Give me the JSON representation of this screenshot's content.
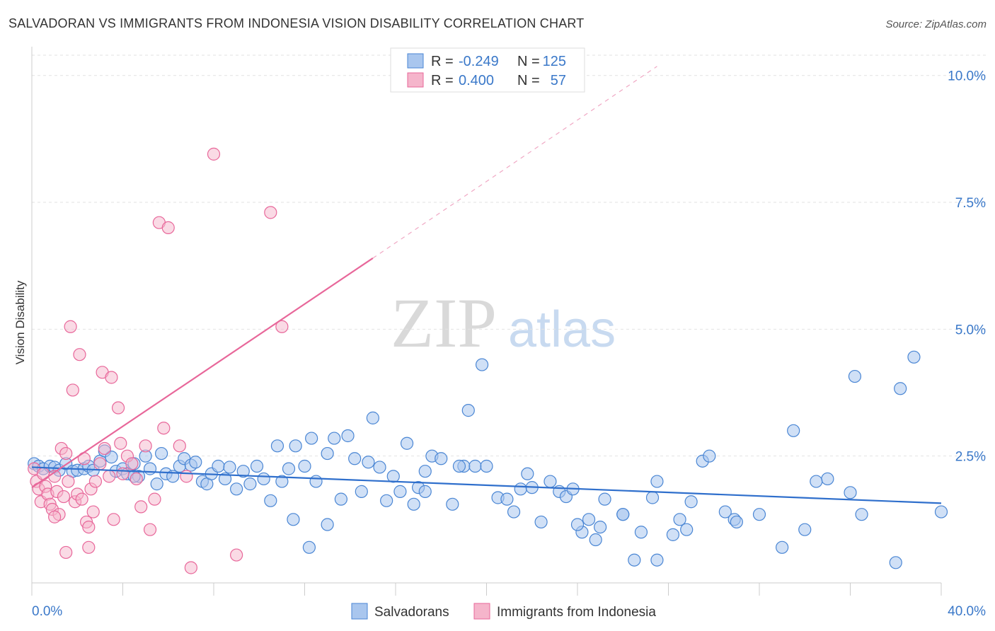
{
  "chart_data": {
    "type": "scatter",
    "title": "SALVADORAN VS IMMIGRANTS FROM INDONESIA VISION DISABILITY CORRELATION CHART",
    "source": "Source: ZipAtlas.com",
    "xlabel": "",
    "ylabel": "Vision Disability",
    "xlim": [
      0,
      40
    ],
    "ylim": [
      0,
      10.4
    ],
    "x_tick_labels": [
      "0.0%",
      "40.0%"
    ],
    "y_ticks": [
      2.5,
      5.0,
      7.5,
      10.0
    ],
    "y_tick_labels": [
      "2.5%",
      "5.0%",
      "7.5%",
      "10.0%"
    ],
    "grid": true,
    "watermark": {
      "zip": "ZIP",
      "atlas": "atlas"
    },
    "colors": {
      "blue": "#4a86d4",
      "blue_fill": "#a9c6ee",
      "pink": "#e8679a",
      "pink_fill": "#f5b5cb",
      "tick": "#3a78c9"
    },
    "legend": {
      "rows": [
        {
          "r_label": "R =",
          "r_value": "-0.249",
          "n_label": "N =",
          "n_value": "125"
        },
        {
          "r_label": "R =",
          "r_value": "0.400",
          "n_label": "N =",
          "n_value": "57"
        }
      ]
    },
    "series": [
      {
        "name": "Salvadorans",
        "color": "#4a86d4",
        "trend": {
          "x0": 0,
          "y0": 2.28,
          "x1": 40,
          "y1": 1.57
        },
        "points": [
          [
            0.1,
            2.35
          ],
          [
            0.3,
            2.3
          ],
          [
            0.5,
            2.25
          ],
          [
            0.8,
            2.3
          ],
          [
            1.0,
            2.28
          ],
          [
            1.2,
            2.22
          ],
          [
            1.5,
            2.35
          ],
          [
            1.8,
            2.2
          ],
          [
            2.0,
            2.22
          ],
          [
            2.3,
            2.25
          ],
          [
            2.5,
            2.3
          ],
          [
            2.7,
            2.22
          ],
          [
            3.0,
            2.4
          ],
          [
            3.2,
            2.6
          ],
          [
            3.5,
            2.48
          ],
          [
            3.7,
            2.2
          ],
          [
            4.0,
            2.25
          ],
          [
            4.2,
            2.15
          ],
          [
            4.5,
            2.35
          ],
          [
            4.7,
            2.1
          ],
          [
            4.5,
            2.1
          ],
          [
            5.0,
            2.5
          ],
          [
            5.2,
            2.25
          ],
          [
            5.5,
            1.95
          ],
          [
            5.7,
            2.55
          ],
          [
            5.9,
            2.15
          ],
          [
            6.2,
            2.1
          ],
          [
            6.5,
            2.3
          ],
          [
            6.7,
            2.45
          ],
          [
            7.0,
            2.32
          ],
          [
            7.2,
            2.38
          ],
          [
            7.5,
            2.0
          ],
          [
            7.7,
            1.95
          ],
          [
            7.9,
            2.15
          ],
          [
            8.2,
            2.3
          ],
          [
            8.5,
            2.05
          ],
          [
            8.7,
            2.28
          ],
          [
            9.0,
            1.85
          ],
          [
            9.3,
            2.2
          ],
          [
            9.6,
            1.95
          ],
          [
            9.9,
            2.3
          ],
          [
            10.2,
            2.05
          ],
          [
            10.5,
            1.62
          ],
          [
            10.8,
            2.7
          ],
          [
            11.0,
            2.0
          ],
          [
            11.3,
            2.25
          ],
          [
            11.6,
            2.7
          ],
          [
            12.0,
            2.3
          ],
          [
            12.3,
            2.85
          ],
          [
            12.5,
            2.0
          ],
          [
            13.0,
            2.55
          ],
          [
            13.3,
            2.85
          ],
          [
            13.6,
            1.65
          ],
          [
            13.9,
            2.9
          ],
          [
            14.2,
            2.45
          ],
          [
            14.5,
            1.8
          ],
          [
            14.8,
            2.38
          ],
          [
            15.0,
            3.25
          ],
          [
            15.3,
            2.28
          ],
          [
            15.6,
            1.62
          ],
          [
            15.9,
            2.1
          ],
          [
            16.2,
            1.8
          ],
          [
            16.5,
            2.75
          ],
          [
            16.8,
            1.55
          ],
          [
            17.0,
            1.88
          ],
          [
            17.3,
            2.2
          ],
          [
            17.6,
            2.5
          ],
          [
            18.0,
            2.45
          ],
          [
            18.5,
            1.55
          ],
          [
            19.0,
            2.3
          ],
          [
            19.5,
            2.3
          ],
          [
            20.0,
            2.3
          ],
          [
            20.5,
            1.68
          ],
          [
            20.9,
            1.65
          ],
          [
            21.2,
            1.4
          ],
          [
            21.5,
            1.85
          ],
          [
            21.8,
            2.15
          ],
          [
            22.0,
            1.88
          ],
          [
            22.4,
            1.2
          ],
          [
            22.8,
            2.0
          ],
          [
            23.2,
            1.8
          ],
          [
            23.5,
            1.7
          ],
          [
            23.8,
            1.85
          ],
          [
            24.2,
            1.0
          ],
          [
            24.5,
            1.25
          ],
          [
            24.8,
            0.85
          ],
          [
            25.0,
            1.1
          ],
          [
            25.2,
            1.65
          ],
          [
            26.0,
            1.35
          ],
          [
            26.5,
            0.45
          ],
          [
            26.8,
            1.0
          ],
          [
            27.3,
            1.68
          ],
          [
            27.5,
            0.45
          ],
          [
            28.5,
            1.25
          ],
          [
            28.8,
            1.05
          ],
          [
            29.0,
            1.6
          ],
          [
            29.5,
            2.4
          ],
          [
            29.8,
            2.5
          ],
          [
            30.5,
            1.4
          ],
          [
            30.9,
            1.25
          ],
          [
            31.0,
            1.2
          ],
          [
            32.0,
            1.35
          ],
          [
            33.0,
            0.7
          ],
          [
            33.5,
            3.0
          ],
          [
            34.0,
            1.05
          ],
          [
            35.0,
            2.05
          ],
          [
            36.0,
            1.78
          ],
          [
            36.5,
            1.35
          ],
          [
            38.0,
            0.4
          ],
          [
            40.0,
            1.4
          ],
          [
            36.2,
            4.07
          ],
          [
            38.2,
            3.83
          ],
          [
            38.8,
            4.45
          ],
          [
            34.5,
            2.0
          ],
          [
            19.2,
            3.4
          ],
          [
            27.5,
            2.0
          ],
          [
            11.5,
            1.25
          ],
          [
            13.0,
            1.15
          ],
          [
            28.2,
            0.95
          ],
          [
            19.8,
            4.3
          ],
          [
            24.0,
            1.15
          ],
          [
            18.8,
            2.3
          ],
          [
            26.0,
            1.35
          ],
          [
            12.2,
            0.7
          ],
          [
            17.3,
            1.8
          ]
        ]
      },
      {
        "name": "Immigrants from Indonesia",
        "color": "#e8679a",
        "trend": {
          "x0": 0,
          "y0": 1.88,
          "x1": 15,
          "y1": 6.4
        },
        "trend_dash": {
          "x0": 15,
          "y0": 6.4,
          "x1": 27.5,
          "y1": 10.18
        },
        "points": [
          [
            0.1,
            2.25
          ],
          [
            0.2,
            2.0
          ],
          [
            0.3,
            1.85
          ],
          [
            0.4,
            1.6
          ],
          [
            0.5,
            2.15
          ],
          [
            0.6,
            1.9
          ],
          [
            0.7,
            1.75
          ],
          [
            0.8,
            1.55
          ],
          [
            0.9,
            1.45
          ],
          [
            1.0,
            2.1
          ],
          [
            1.1,
            1.8
          ],
          [
            1.2,
            1.35
          ],
          [
            1.3,
            2.65
          ],
          [
            1.4,
            1.7
          ],
          [
            1.5,
            2.55
          ],
          [
            1.6,
            2.0
          ],
          [
            1.7,
            5.05
          ],
          [
            1.8,
            3.8
          ],
          [
            1.9,
            1.6
          ],
          [
            2.0,
            1.75
          ],
          [
            2.1,
            4.5
          ],
          [
            2.2,
            1.65
          ],
          [
            2.3,
            2.45
          ],
          [
            2.4,
            1.2
          ],
          [
            2.5,
            1.1
          ],
          [
            2.6,
            1.85
          ],
          [
            2.7,
            1.4
          ],
          [
            2.8,
            2.0
          ],
          [
            3.0,
            2.35
          ],
          [
            3.1,
            4.15
          ],
          [
            3.2,
            2.65
          ],
          [
            3.4,
            2.1
          ],
          [
            3.5,
            4.05
          ],
          [
            3.6,
            1.25
          ],
          [
            3.8,
            3.45
          ],
          [
            3.9,
            2.75
          ],
          [
            4.0,
            2.15
          ],
          [
            4.2,
            2.5
          ],
          [
            4.4,
            2.35
          ],
          [
            4.6,
            2.05
          ],
          [
            4.8,
            1.5
          ],
          [
            5.0,
            2.7
          ],
          [
            5.2,
            1.05
          ],
          [
            5.4,
            1.65
          ],
          [
            5.6,
            7.1
          ],
          [
            5.8,
            3.05
          ],
          [
            6.0,
            7.0
          ],
          [
            6.5,
            2.7
          ],
          [
            6.8,
            2.1
          ],
          [
            7.0,
            0.3
          ],
          [
            8.0,
            8.45
          ],
          [
            9.0,
            0.55
          ],
          [
            10.5,
            7.3
          ],
          [
            11.0,
            5.05
          ],
          [
            1.5,
            0.6
          ],
          [
            2.5,
            0.7
          ],
          [
            1.0,
            1.3
          ]
        ]
      }
    ]
  },
  "bottom_legend": {
    "items": [
      "Salvadorans",
      "Immigrants from Indonesia"
    ]
  }
}
